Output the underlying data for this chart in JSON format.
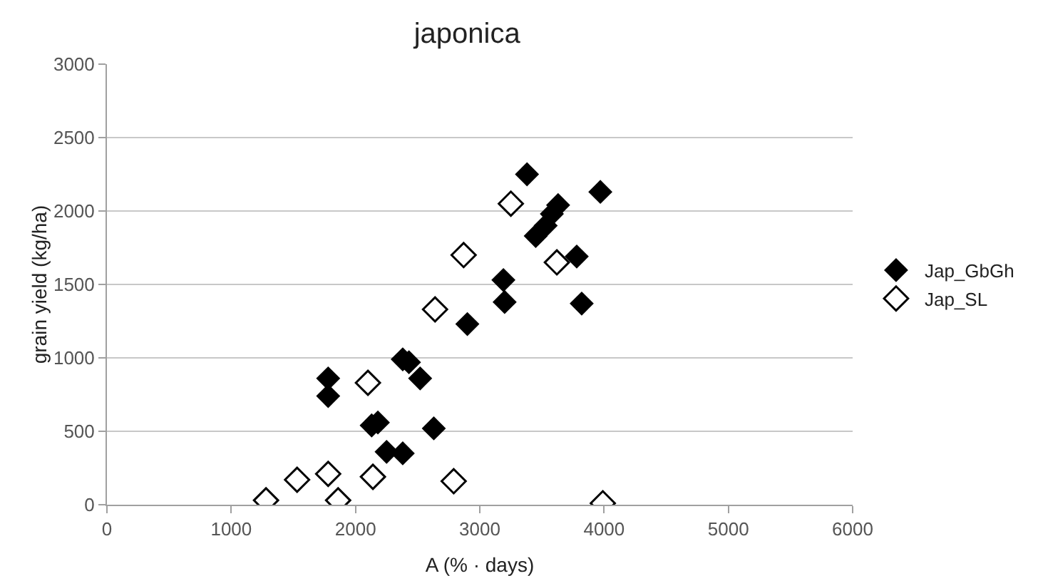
{
  "chart_data": {
    "type": "scatter",
    "title": "japonica",
    "xlabel": "A (% · days)",
    "ylabel": "grain yield (kg/ha)",
    "xlim": [
      0,
      6000
    ],
    "xticks": [
      0,
      1000,
      2000,
      3000,
      4000,
      5000,
      6000
    ],
    "ylim": [
      0,
      3000
    ],
    "yticks": [
      0,
      500,
      1000,
      1500,
      2000,
      2500,
      3000
    ],
    "grid": "y",
    "legend": "right",
    "marker": "diamond",
    "series": [
      {
        "name": "Jap_GbGh",
        "color": "#000000",
        "x": [
          1780,
          1780,
          2130,
          2180,
          2250,
          2380,
          2380,
          2430,
          2520,
          2630,
          2900,
          3190,
          3200,
          3380,
          3450,
          3530,
          3580,
          3630,
          3780,
          3820,
          3970
        ],
        "values": [
          860,
          740,
          540,
          560,
          360,
          350,
          990,
          970,
          860,
          520,
          1230,
          1530,
          1380,
          2250,
          1830,
          1900,
          1980,
          2040,
          1690,
          1370,
          2130
        ]
      },
      {
        "name": "Jap_SL",
        "color": "#ffffff",
        "x": [
          1280,
          1530,
          1780,
          1860,
          2100,
          2140,
          2640,
          2790,
          2870,
          3250,
          3620,
          3990
        ],
        "values": [
          30,
          170,
          210,
          30,
          830,
          190,
          1330,
          160,
          1700,
          2050,
          1650,
          10
        ]
      }
    ]
  }
}
